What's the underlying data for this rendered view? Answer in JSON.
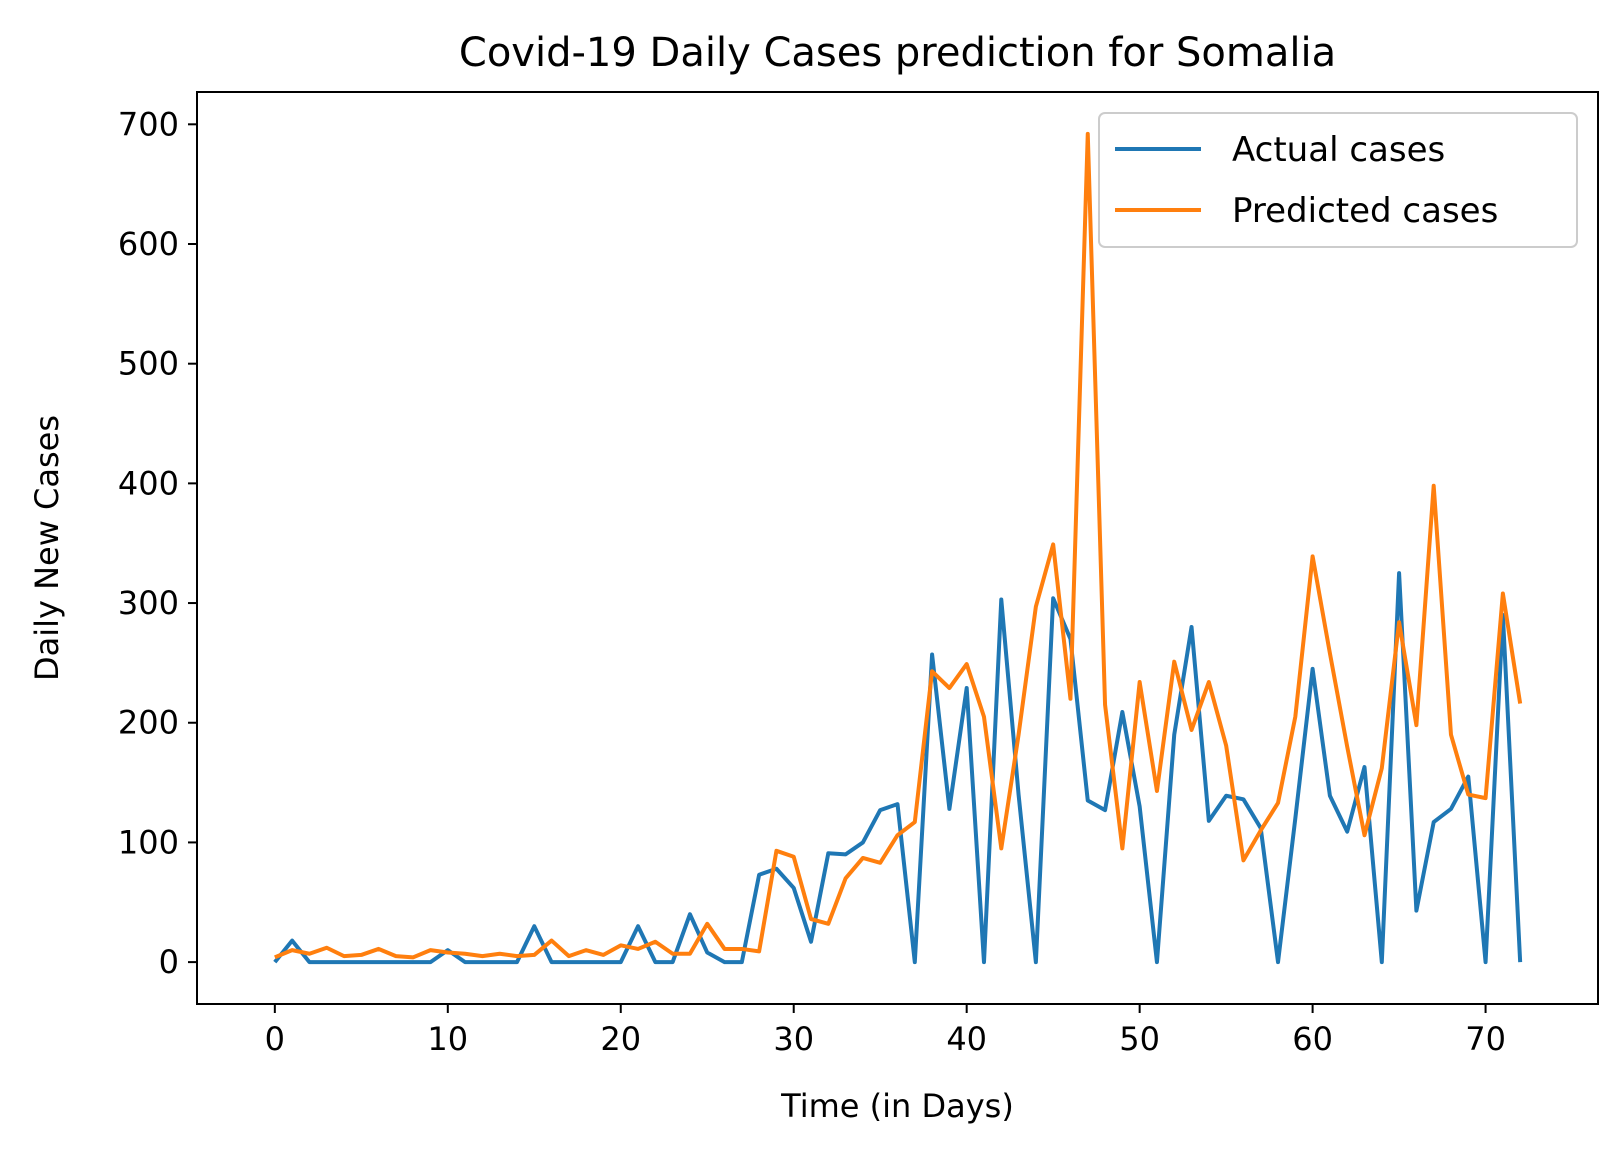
{
  "chart_data": {
    "type": "line",
    "title": "Covid-19 Daily Cases prediction for Somalia",
    "xlabel": "Time (in Days)",
    "ylabel": "Daily New Cases",
    "xlim": [
      -4.5,
      76.5
    ],
    "ylim": [
      -35,
      727
    ],
    "xticks": [
      0,
      10,
      20,
      30,
      40,
      50,
      60,
      70
    ],
    "yticks": [
      0,
      100,
      200,
      300,
      400,
      500,
      600,
      700
    ],
    "grid": false,
    "legend_position": "top-right",
    "x": [
      0,
      1,
      2,
      3,
      4,
      5,
      6,
      7,
      8,
      9,
      10,
      11,
      12,
      13,
      14,
      15,
      16,
      17,
      18,
      19,
      20,
      21,
      22,
      23,
      24,
      25,
      26,
      27,
      28,
      29,
      30,
      31,
      32,
      33,
      34,
      35,
      36,
      37,
      38,
      39,
      40,
      41,
      42,
      43,
      44,
      45,
      46,
      47,
      48,
      49,
      50,
      51,
      52,
      53,
      54,
      55,
      56,
      57,
      58,
      59,
      60,
      61,
      62,
      63,
      64,
      65,
      66,
      67,
      68,
      69,
      70,
      71,
      72
    ],
    "series": [
      {
        "name": "Actual cases",
        "color": "#1f77b4",
        "values": [
          0,
          18,
          0,
          0,
          0,
          0,
          0,
          0,
          0,
          0,
          10,
          0,
          0,
          0,
          0,
          30,
          0,
          0,
          0,
          0,
          0,
          30,
          0,
          0,
          40,
          8,
          0,
          0,
          73,
          78,
          62,
          17,
          91,
          90,
          100,
          127,
          132,
          0,
          257,
          128,
          229,
          0,
          303,
          140,
          0,
          304,
          270,
          135,
          127,
          209,
          130,
          0,
          190,
          280,
          118,
          139,
          136,
          112,
          0,
          120,
          245,
          139,
          109,
          163,
          0,
          325,
          43,
          117,
          128,
          155,
          0,
          290,
          0
        ]
      },
      {
        "name": "Predicted cases",
        "color": "#ff7f0e",
        "values": [
          4,
          10,
          7,
          12,
          5,
          6,
          11,
          5,
          4,
          10,
          8,
          7,
          5,
          7,
          5,
          6,
          18,
          5,
          10,
          6,
          14,
          11,
          17,
          7,
          7,
          32,
          11,
          11,
          9,
          93,
          88,
          36,
          32,
          70,
          87,
          83,
          106,
          117,
          243,
          229,
          249,
          205,
          95,
          190,
          297,
          349,
          220,
          692,
          215,
          95,
          234,
          143,
          251,
          194,
          234,
          181,
          85,
          110,
          133,
          205,
          339,
          258,
          180,
          106,
          162,
          284,
          198,
          398,
          190,
          140,
          137,
          308,
          216
        ]
      }
    ]
  }
}
